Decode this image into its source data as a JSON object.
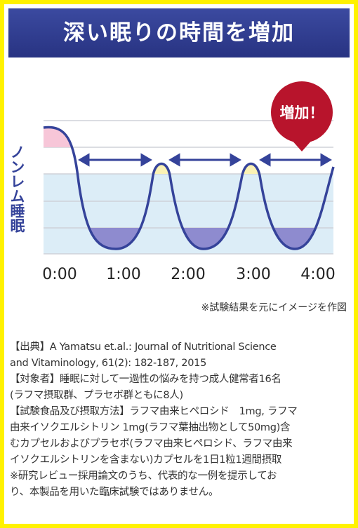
{
  "header": {
    "title": "深い眠りの時間を増加"
  },
  "diagram": {
    "badge": "増加！",
    "y_label": "ノンレム睡眠",
    "x_ticks": [
      "0:00",
      "1:00",
      "2:00",
      "3:00",
      "4:00"
    ],
    "note": "※試験結果を元にイメージを作図"
  },
  "source": {
    "lines": [
      "【出典】A Yamatsu et.al.: Journal of Nutritional Science",
      "and Vitaminology, 61(2): 182-187, 2015",
      "【対象者】睡眠に対して一過性の悩みを持つ成人健常者16名",
      "(ラフマ摂取群、プラセボ群ともに8人)",
      "【試験食品及び摂取方法】ラフマ由来ヒペロシド　1mg, ラフマ",
      "由来イソクエルシトリン 1mg(ラフマ葉抽出物として50mg)含",
      "むカプセルおよびプラセボ(ラフマ由来ヒペロシド、ラフマ由来",
      "イソクエルシトリンを含まない)カプセルを1日1粒1週間摂取",
      "※研究レビュー採用論文のうち、代表的な一例を提示してお",
      "り、本製品を用いた臨床試験ではありません。"
    ]
  }
}
